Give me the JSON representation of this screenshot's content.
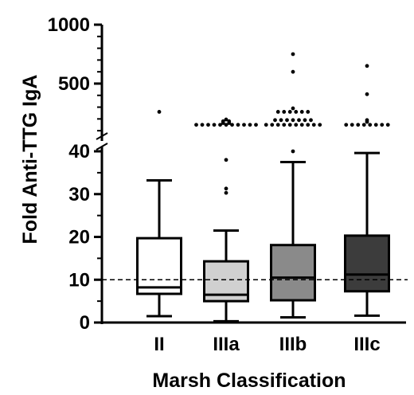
{
  "chart_data": {
    "type": "box",
    "xlabel": "Marsh Classification",
    "ylabel": "Fold Anti-TTG IgA",
    "categories": [
      "II",
      "IIIa",
      "IIIb",
      "IIIc"
    ],
    "box_colors": [
      "#ffffff",
      "#d0d0d0",
      "#8a8a8a",
      "#3c3c3c"
    ],
    "y_axis_segments": [
      {
        "range": [
          0,
          40
        ],
        "ticks": [
          0,
          10,
          20,
          30,
          40
        ]
      },
      {
        "range": [
          40,
          1000
        ],
        "ticks": [
          500,
          1000
        ]
      }
    ],
    "reference_line": {
      "value": 10,
      "style": "dashed"
    },
    "boxes": [
      {
        "category": "II",
        "whisker_low": 1.5,
        "q1": 6.7,
        "median": 8.2,
        "q3": 19.7,
        "whisker_high": 33.2,
        "outliers": [
          260
        ]
      },
      {
        "category": "IIIa",
        "whisker_low": 0.3,
        "q1": 5.0,
        "median": 6.5,
        "q3": 14.3,
        "whisker_high": 21.5,
        "outliers": [
          30.3,
          31.3,
          38.0,
          150,
          150,
          150,
          150,
          150,
          150,
          150,
          150,
          150,
          150,
          150,
          165,
          165,
          180,
          180,
          195
        ]
      },
      {
        "category": "IIIb",
        "whisker_low": 1.2,
        "q1": 5.2,
        "median": 10.5,
        "q3": 18.1,
        "whisker_high": 37.5,
        "outliers": [
          40,
          150,
          150,
          150,
          150,
          150,
          150,
          150,
          150,
          150,
          150,
          190,
          190,
          190,
          190,
          190,
          190,
          190,
          260,
          260,
          260,
          260,
          260,
          260,
          290,
          600,
          750
        ]
      },
      {
        "category": "IIIc",
        "whisker_low": 1.6,
        "q1": 7.3,
        "median": 11.2,
        "q3": 20.3,
        "whisker_high": 39.6,
        "outliers": [
          150,
          150,
          150,
          150,
          150,
          150,
          150,
          150,
          175,
          190,
          410,
          650
        ]
      }
    ]
  }
}
